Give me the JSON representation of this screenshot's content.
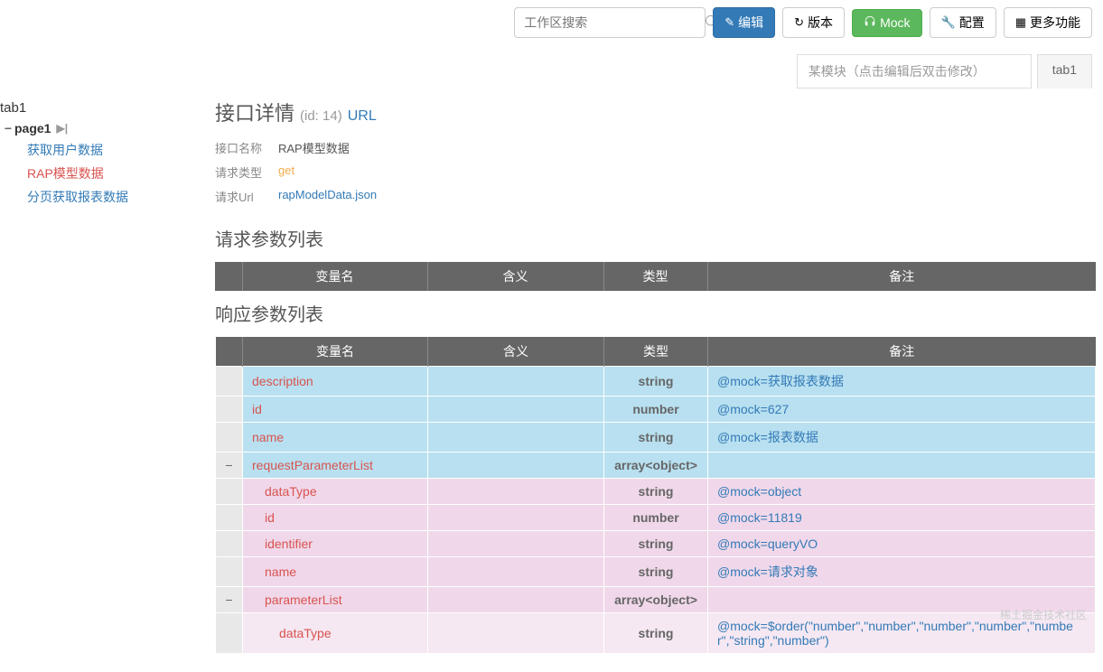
{
  "toolbar": {
    "search_placeholder": "工作区搜索",
    "edit": "编辑",
    "version": "版本",
    "mock": "Mock",
    "config": "配置",
    "more": "更多功能"
  },
  "module": {
    "placeholder": "某模块（点击编辑后双击修改）",
    "tab": "tab1"
  },
  "tree": {
    "tab": "tab1",
    "page": "page1",
    "items": [
      {
        "label": "获取用户数据",
        "active": false
      },
      {
        "label": "RAP模型数据",
        "active": true
      },
      {
        "label": "分页获取报表数据",
        "active": false
      }
    ]
  },
  "detail": {
    "title": "接口详情",
    "id_label": "(id: 14)",
    "url_link": "URL",
    "meta": {
      "name_label": "接口名称",
      "name_value": "RAP模型数据",
      "type_label": "请求类型",
      "type_value": "get",
      "url_label": "请求Url",
      "url_value": "rapModelData.json"
    }
  },
  "request_table": {
    "title": "请求参数列表",
    "headers": [
      "变量名",
      "含义",
      "类型",
      "备注"
    ]
  },
  "response_table": {
    "title": "响应参数列表",
    "headers": [
      "变量名",
      "含义",
      "类型",
      "备注"
    ],
    "col_widths": {
      "toggle": 30,
      "name": 205,
      "meaning": 195,
      "type": 115
    },
    "rows": [
      {
        "toggle": "",
        "name": "description",
        "meaning": "",
        "type": "string",
        "remark": "@mock=获取报表数据",
        "cls": "row-blue",
        "indent": 0
      },
      {
        "toggle": "",
        "name": "id",
        "meaning": "",
        "type": "number",
        "remark": "@mock=627",
        "cls": "row-blue",
        "indent": 0
      },
      {
        "toggle": "",
        "name": "name",
        "meaning": "",
        "type": "string",
        "remark": "@mock=报表数据",
        "cls": "row-blue",
        "indent": 0
      },
      {
        "toggle": "−",
        "name": "requestParameterList",
        "meaning": "",
        "type": "array<object>",
        "remark": "",
        "cls": "row-blue",
        "indent": 0
      },
      {
        "toggle": "",
        "name": "dataType",
        "meaning": "",
        "type": "string",
        "remark": "@mock=object",
        "cls": "row-pink",
        "indent": 1
      },
      {
        "toggle": "",
        "name": "id",
        "meaning": "",
        "type": "number",
        "remark": "@mock=11819",
        "cls": "row-pink",
        "indent": 1
      },
      {
        "toggle": "",
        "name": "identifier",
        "meaning": "",
        "type": "string",
        "remark": "@mock=queryVO",
        "cls": "row-pink",
        "indent": 1
      },
      {
        "toggle": "",
        "name": "name",
        "meaning": "",
        "type": "string",
        "remark": "@mock=请求对象",
        "cls": "row-pink",
        "indent": 1
      },
      {
        "toggle": "−",
        "name": "parameterList",
        "meaning": "",
        "type": "array<object>",
        "remark": "",
        "cls": "row-pink",
        "indent": 1
      },
      {
        "toggle": "",
        "name": "dataType",
        "meaning": "",
        "type": "string",
        "remark": "@mock=$order(\"number\",\"number\",\"number\",\"number\",\"number\",\"string\",\"number\")",
        "cls": "row-light",
        "indent": 2
      }
    ]
  },
  "colors": {
    "header_bg": "#666666",
    "row_blue": "#b8e0f0",
    "row_pink": "#f0d8ea",
    "row_light": "#f5e8f2",
    "link": "#337ab7",
    "danger": "#d9534f",
    "warn": "#f0ad4e",
    "btn_primary": "#337ab7",
    "btn_success": "#5cb85c"
  },
  "watermark": "稀土掘金技术社区"
}
